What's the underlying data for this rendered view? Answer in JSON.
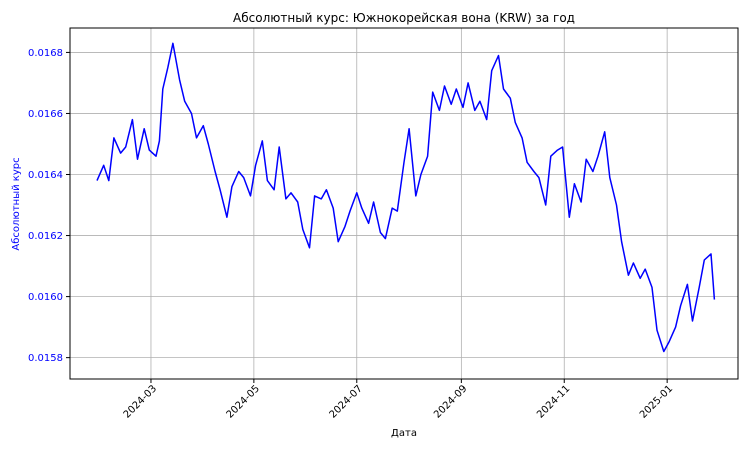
{
  "chart_data": {
    "type": "line",
    "title": "Абсолютный курс: Южнокорейская вона (KRW) за год",
    "xlabel": "Дата",
    "ylabel": "Абсолютный курс",
    "grid": true,
    "legend": "none",
    "x_range": [
      "2024-01-13",
      "2025-02-12"
    ],
    "ylim": [
      0.01573,
      0.01688
    ],
    "x_ticks": [
      "2024-03",
      "2024-05",
      "2024-07",
      "2024-09",
      "2024-11",
      "2025-01"
    ],
    "x_tick_dates": [
      "2024-03-01",
      "2024-05-01",
      "2024-07-01",
      "2024-09-01",
      "2024-11-01",
      "2025-01-01"
    ],
    "y_ticks": [
      "0.0158",
      "0.0160",
      "0.0162",
      "0.0164",
      "0.0166",
      "0.0168"
    ],
    "y_tick_values": [
      0.0158,
      0.016,
      0.0162,
      0.0164,
      0.0166,
      0.0168
    ],
    "colors": {
      "line": "#0000ff",
      "ylabel": "#0000ff",
      "ytick": "#0000ff",
      "grid": "#b0b0b0"
    },
    "series": [
      {
        "x": [
          "2024-01-29",
          "2024-02-02",
          "2024-02-05",
          "2024-02-08",
          "2024-02-12",
          "2024-02-15",
          "2024-02-19",
          "2024-02-22",
          "2024-02-26",
          "2024-02-29",
          "2024-03-04",
          "2024-03-06",
          "2024-03-08",
          "2024-03-11",
          "2024-03-14",
          "2024-03-18",
          "2024-03-21",
          "2024-03-25",
          "2024-03-28",
          "2024-04-01",
          "2024-04-04",
          "2024-04-08",
          "2024-04-11",
          "2024-04-15",
          "2024-04-18",
          "2024-04-22",
          "2024-04-25",
          "2024-04-29",
          "2024-05-02",
          "2024-05-06",
          "2024-05-09",
          "2024-05-13",
          "2024-05-16",
          "2024-05-20",
          "2024-05-23",
          "2024-05-27",
          "2024-05-30",
          "2024-06-03",
          "2024-06-06",
          "2024-06-10",
          "2024-06-13",
          "2024-06-17",
          "2024-06-20",
          "2024-06-24",
          "2024-06-27",
          "2024-07-01",
          "2024-07-04",
          "2024-07-08",
          "2024-07-11",
          "2024-07-15",
          "2024-07-18",
          "2024-07-22",
          "2024-07-25",
          "2024-07-29",
          "2024-08-01",
          "2024-08-05",
          "2024-08-08",
          "2024-08-12",
          "2024-08-15",
          "2024-08-19",
          "2024-08-22",
          "2024-08-26",
          "2024-08-29",
          "2024-09-02",
          "2024-09-05",
          "2024-09-09",
          "2024-09-12",
          "2024-09-16",
          "2024-09-19",
          "2024-09-23",
          "2024-09-26",
          "2024-09-30",
          "2024-10-03",
          "2024-10-07",
          "2024-10-10",
          "2024-10-14",
          "2024-10-17",
          "2024-10-21",
          "2024-10-24",
          "2024-10-28",
          "2024-10-31",
          "2024-11-04",
          "2024-11-07",
          "2024-11-11",
          "2024-11-14",
          "2024-11-18",
          "2024-11-21",
          "2024-11-25",
          "2024-11-28",
          "2024-12-02",
          "2024-12-05",
          "2024-12-09",
          "2024-12-12",
          "2024-12-16",
          "2024-12-19",
          "2024-12-23",
          "2024-12-26",
          "2024-12-30",
          "2025-01-02",
          "2025-01-06",
          "2025-01-09",
          "2025-01-13",
          "2025-01-16",
          "2025-01-20",
          "2025-01-23",
          "2025-01-27",
          "2025-01-29"
        ],
        "values": [
          0.01638,
          0.01643,
          0.01638,
          0.01652,
          0.01647,
          0.01649,
          0.01658,
          0.01645,
          0.01655,
          0.01648,
          0.01646,
          0.01651,
          0.01668,
          0.01675,
          0.01683,
          0.01671,
          0.01664,
          0.0166,
          0.01652,
          0.01656,
          0.0165,
          0.01641,
          0.01635,
          0.01626,
          0.01636,
          0.01641,
          0.01639,
          0.01633,
          0.01643,
          0.01651,
          0.01638,
          0.01635,
          0.01649,
          0.01632,
          0.01634,
          0.01631,
          0.01622,
          0.01616,
          0.01633,
          0.01632,
          0.01635,
          0.01629,
          0.01618,
          0.01623,
          0.01628,
          0.01634,
          0.01629,
          0.01624,
          0.01631,
          0.01621,
          0.01619,
          0.01629,
          0.01628,
          0.01644,
          0.01655,
          0.01633,
          0.0164,
          0.01646,
          0.01667,
          0.01661,
          0.01669,
          0.01663,
          0.01668,
          0.01662,
          0.0167,
          0.01661,
          0.01664,
          0.01658,
          0.01674,
          0.01679,
          0.01668,
          0.01665,
          0.01657,
          0.01652,
          0.01644,
          0.01641,
          0.01639,
          0.0163,
          0.01646,
          0.01648,
          0.01649,
          0.01626,
          0.01637,
          0.01631,
          0.01645,
          0.01641,
          0.01646,
          0.01654,
          0.01639,
          0.0163,
          0.01618,
          0.01607,
          0.01611,
          0.01606,
          0.01609,
          0.01603,
          0.01589,
          0.01582,
          0.01585,
          0.0159,
          0.01597,
          0.01604,
          0.01592,
          0.01603,
          0.01612,
          0.01614,
          0.01599
        ]
      }
    ]
  }
}
